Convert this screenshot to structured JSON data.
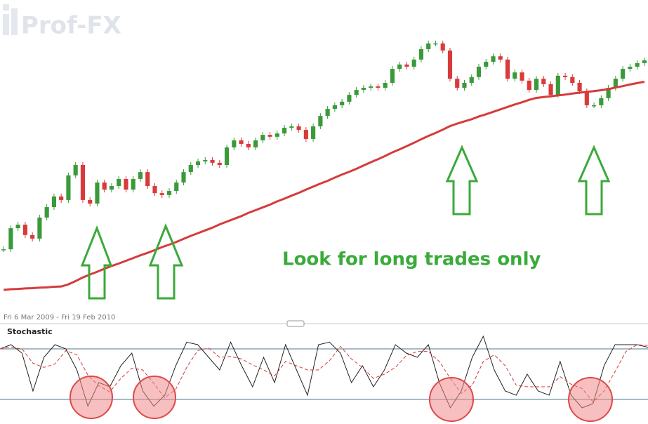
{
  "watermark": "Prof-FX",
  "chart_data": [
    {
      "type": "candlestick",
      "date_range": "Fri 6 Mar 2009 - Fri 19 Feb 2010",
      "annotation": "Look for long trades only",
      "ylim": [
        0,
        100
      ],
      "up_color": "#3a9a3a",
      "down_color": "#d93a3a",
      "series": [
        {
          "name": "close",
          "values": [
            19.2,
            26.9,
            28.2,
            24.4,
            23.1,
            30.8,
            34.6,
            38.5,
            37.2,
            46.2,
            50,
            37.2,
            35.9,
            43.6,
            41,
            42.3,
            44.9,
            41,
            44.9,
            47.4,
            42.3,
            39.7,
            39,
            40.5,
            43.6,
            47.4,
            50,
            51.3,
            51.8,
            50.8,
            50,
            56.4,
            59,
            57.7,
            56.4,
            59,
            61,
            60.3,
            61.5,
            63.6,
            64.1,
            62.8,
            59.5,
            64.1,
            67.9,
            70.5,
            71.8,
            73.1,
            75.6,
            77.4,
            78.2,
            78.7,
            78.2,
            80,
            85.1,
            86.7,
            85.9,
            88.5,
            92.3,
            94.4,
            94.4,
            91.8,
            81.5,
            78.2,
            80,
            82.1,
            85.9,
            87.7,
            89.7,
            88.5,
            81.5,
            83.8,
            80.8,
            77.4,
            81.5,
            79.5,
            75.6,
            82.6,
            82.1,
            80,
            76.9,
            71.8,
            71.8,
            74.4,
            78.2,
            81.5,
            85.1,
            85.9,
            87.2,
            88.2
          ]
        },
        {
          "name": "moving-average",
          "type": "line",
          "color": "#d63b3b",
          "values": [
            4.4,
            4.6,
            4.7,
            4.9,
            5.0,
            5.2,
            5.3,
            5.5,
            5.6,
            6.4,
            7.6,
            8.9,
            10.0,
            11.0,
            12.1,
            13.1,
            14.0,
            15.0,
            16.0,
            17.0,
            17.9,
            18.9,
            20.0,
            20.9,
            21.9,
            23.0,
            24.1,
            25.1,
            26.1,
            27.1,
            28.3,
            29.3,
            30.3,
            31.3,
            32.5,
            33.5,
            34.5,
            35.5,
            36.7,
            37.7,
            38.8,
            39.8,
            41.0,
            42.1,
            43.2,
            44.2,
            45.4,
            46.5,
            47.5,
            48.6,
            49.8,
            51.0,
            52.1,
            53.3,
            54.6,
            55.7,
            56.9,
            58.1,
            59.4,
            60.6,
            61.7,
            62.9,
            64.2,
            65.1,
            65.9,
            66.7,
            67.7,
            68.5,
            69.4,
            70.3,
            71.2,
            72.1,
            72.9,
            73.8,
            74.5,
            74.8,
            75.1,
            75.4,
            75.7,
            76.1,
            76.4,
            76.7,
            77.0,
            77.3,
            77.7,
            78.3,
            78.8,
            79.4,
            79.9,
            80.4
          ]
        }
      ]
    },
    {
      "type": "line",
      "title": "Stochastic",
      "ylim": [
        0,
        100
      ],
      "levels": [
        20,
        80
      ],
      "series": [
        {
          "name": "%K",
          "color": "#222222",
          "values": [
            80,
            85,
            75,
            30,
            70,
            85,
            80,
            55,
            12,
            40,
            35,
            60,
            75,
            30,
            12,
            25,
            60,
            88,
            85,
            70,
            55,
            88,
            60,
            35,
            70,
            40,
            85,
            55,
            25,
            85,
            88,
            75,
            40,
            60,
            35,
            55,
            85,
            75,
            70,
            85,
            40,
            10,
            30,
            70,
            95,
            55,
            30,
            25,
            50,
            30,
            25,
            65,
            25,
            10,
            15,
            60,
            85,
            85,
            85,
            82
          ]
        },
        {
          "name": "%D",
          "color": "#d63b3b",
          "dashed": true,
          "values": [
            80,
            82,
            80,
            63,
            58,
            62,
            78,
            73,
            49,
            36,
            29,
            45,
            57,
            55,
            39,
            22,
            32,
            58,
            78,
            81,
            70,
            71,
            68,
            61,
            55,
            48,
            65,
            60,
            55,
            55,
            66,
            83,
            68,
            58,
            45,
            50,
            58,
            72,
            77,
            77,
            65,
            45,
            27,
            37,
            65,
            73,
            60,
            37,
            35,
            35,
            35,
            47,
            38,
            33,
            17,
            30,
            53,
            77,
            85,
            84
          ]
        }
      ]
    }
  ]
}
